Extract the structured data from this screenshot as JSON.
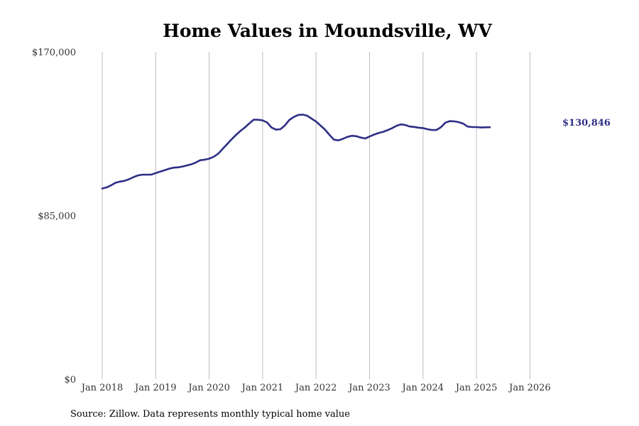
{
  "chart_data": {
    "type": "line",
    "title": "Home Values in Moundsville, WV",
    "xlabel": "",
    "ylabel": "",
    "ylim": [
      0,
      170000
    ],
    "yticks": [
      "$170,000",
      "$85,000",
      "$0"
    ],
    "xticks": [
      "Jan 2018",
      "Jan 2019",
      "Jan 2020",
      "Jan 2021",
      "Jan 2022",
      "Jan 2023",
      "Jan 2024",
      "Jan 2025",
      "Jan 2026"
    ],
    "x_range": [
      "2018-01",
      "2026-06"
    ],
    "grid": "vertical",
    "line_color": "#2e2e86",
    "end_label": "$130,846",
    "source": "Source: Zillow. Data represents monthly typical home value",
    "series": [
      {
        "values": [
          [
            "2018-01",
            99000
          ],
          [
            "2018-02",
            99600
          ],
          [
            "2018-03",
            100700
          ],
          [
            "2018-04",
            102000
          ],
          [
            "2018-05",
            102600
          ],
          [
            "2018-06",
            103000
          ],
          [
            "2018-07",
            103800
          ],
          [
            "2018-08",
            104900
          ],
          [
            "2018-09",
            105800
          ],
          [
            "2018-10",
            106200
          ],
          [
            "2018-11",
            106200
          ],
          [
            "2018-12",
            106200
          ],
          [
            "2019-01",
            107000
          ],
          [
            "2019-02",
            107800
          ],
          [
            "2019-03",
            108500
          ],
          [
            "2019-04",
            109300
          ],
          [
            "2019-05",
            109800
          ],
          [
            "2019-06",
            110000
          ],
          [
            "2019-07",
            110400
          ],
          [
            "2019-08",
            111000
          ],
          [
            "2019-09",
            111600
          ],
          [
            "2019-10",
            112500
          ],
          [
            "2019-11",
            113700
          ],
          [
            "2019-12",
            114000
          ],
          [
            "2020-01",
            114500
          ],
          [
            "2020-02",
            115500
          ],
          [
            "2020-03",
            117000
          ],
          [
            "2020-04",
            119500
          ],
          [
            "2020-05",
            122000
          ],
          [
            "2020-06",
            124500
          ],
          [
            "2020-07",
            126800
          ],
          [
            "2020-08",
            128900
          ],
          [
            "2020-09",
            130700
          ],
          [
            "2020-10",
            132800
          ],
          [
            "2020-11",
            134800
          ],
          [
            "2020-12",
            134700
          ],
          [
            "2021-01",
            134400
          ],
          [
            "2021-02",
            133300
          ],
          [
            "2021-03",
            130700
          ],
          [
            "2021-04",
            129600
          ],
          [
            "2021-05",
            129800
          ],
          [
            "2021-06",
            131800
          ],
          [
            "2021-07",
            134600
          ],
          [
            "2021-08",
            136200
          ],
          [
            "2021-09",
            137200
          ],
          [
            "2021-10",
            137400
          ],
          [
            "2021-11",
            136800
          ],
          [
            "2021-12",
            135300
          ],
          [
            "2022-01",
            133800
          ],
          [
            "2022-02",
            131700
          ],
          [
            "2022-03",
            129600
          ],
          [
            "2022-04",
            126900
          ],
          [
            "2022-05",
            124400
          ],
          [
            "2022-06",
            124000
          ],
          [
            "2022-07",
            124800
          ],
          [
            "2022-08",
            125800
          ],
          [
            "2022-09",
            126400
          ],
          [
            "2022-10",
            126200
          ],
          [
            "2022-11",
            125500
          ],
          [
            "2022-12",
            125000
          ],
          [
            "2023-01",
            126000
          ],
          [
            "2023-02",
            127000
          ],
          [
            "2023-03",
            127800
          ],
          [
            "2023-04",
            128400
          ],
          [
            "2023-05",
            129300
          ],
          [
            "2023-06",
            130300
          ],
          [
            "2023-07",
            131500
          ],
          [
            "2023-08",
            132300
          ],
          [
            "2023-09",
            132000
          ],
          [
            "2023-10",
            131200
          ],
          [
            "2023-11",
            131000
          ],
          [
            "2023-12",
            130600
          ],
          [
            "2024-01",
            130400
          ],
          [
            "2024-02",
            129800
          ],
          [
            "2024-03",
            129400
          ],
          [
            "2024-04",
            129400
          ],
          [
            "2024-05",
            130800
          ],
          [
            "2024-06",
            133200
          ],
          [
            "2024-07",
            134000
          ],
          [
            "2024-08",
            133900
          ],
          [
            "2024-09",
            133500
          ],
          [
            "2024-10",
            132700
          ],
          [
            "2024-11",
            131200
          ],
          [
            "2024-12",
            130900
          ],
          [
            "2025-01",
            130900
          ],
          [
            "2025-02",
            130700
          ],
          [
            "2025-03",
            130800
          ],
          [
            "2025-04",
            130846
          ]
        ]
      }
    ]
  }
}
